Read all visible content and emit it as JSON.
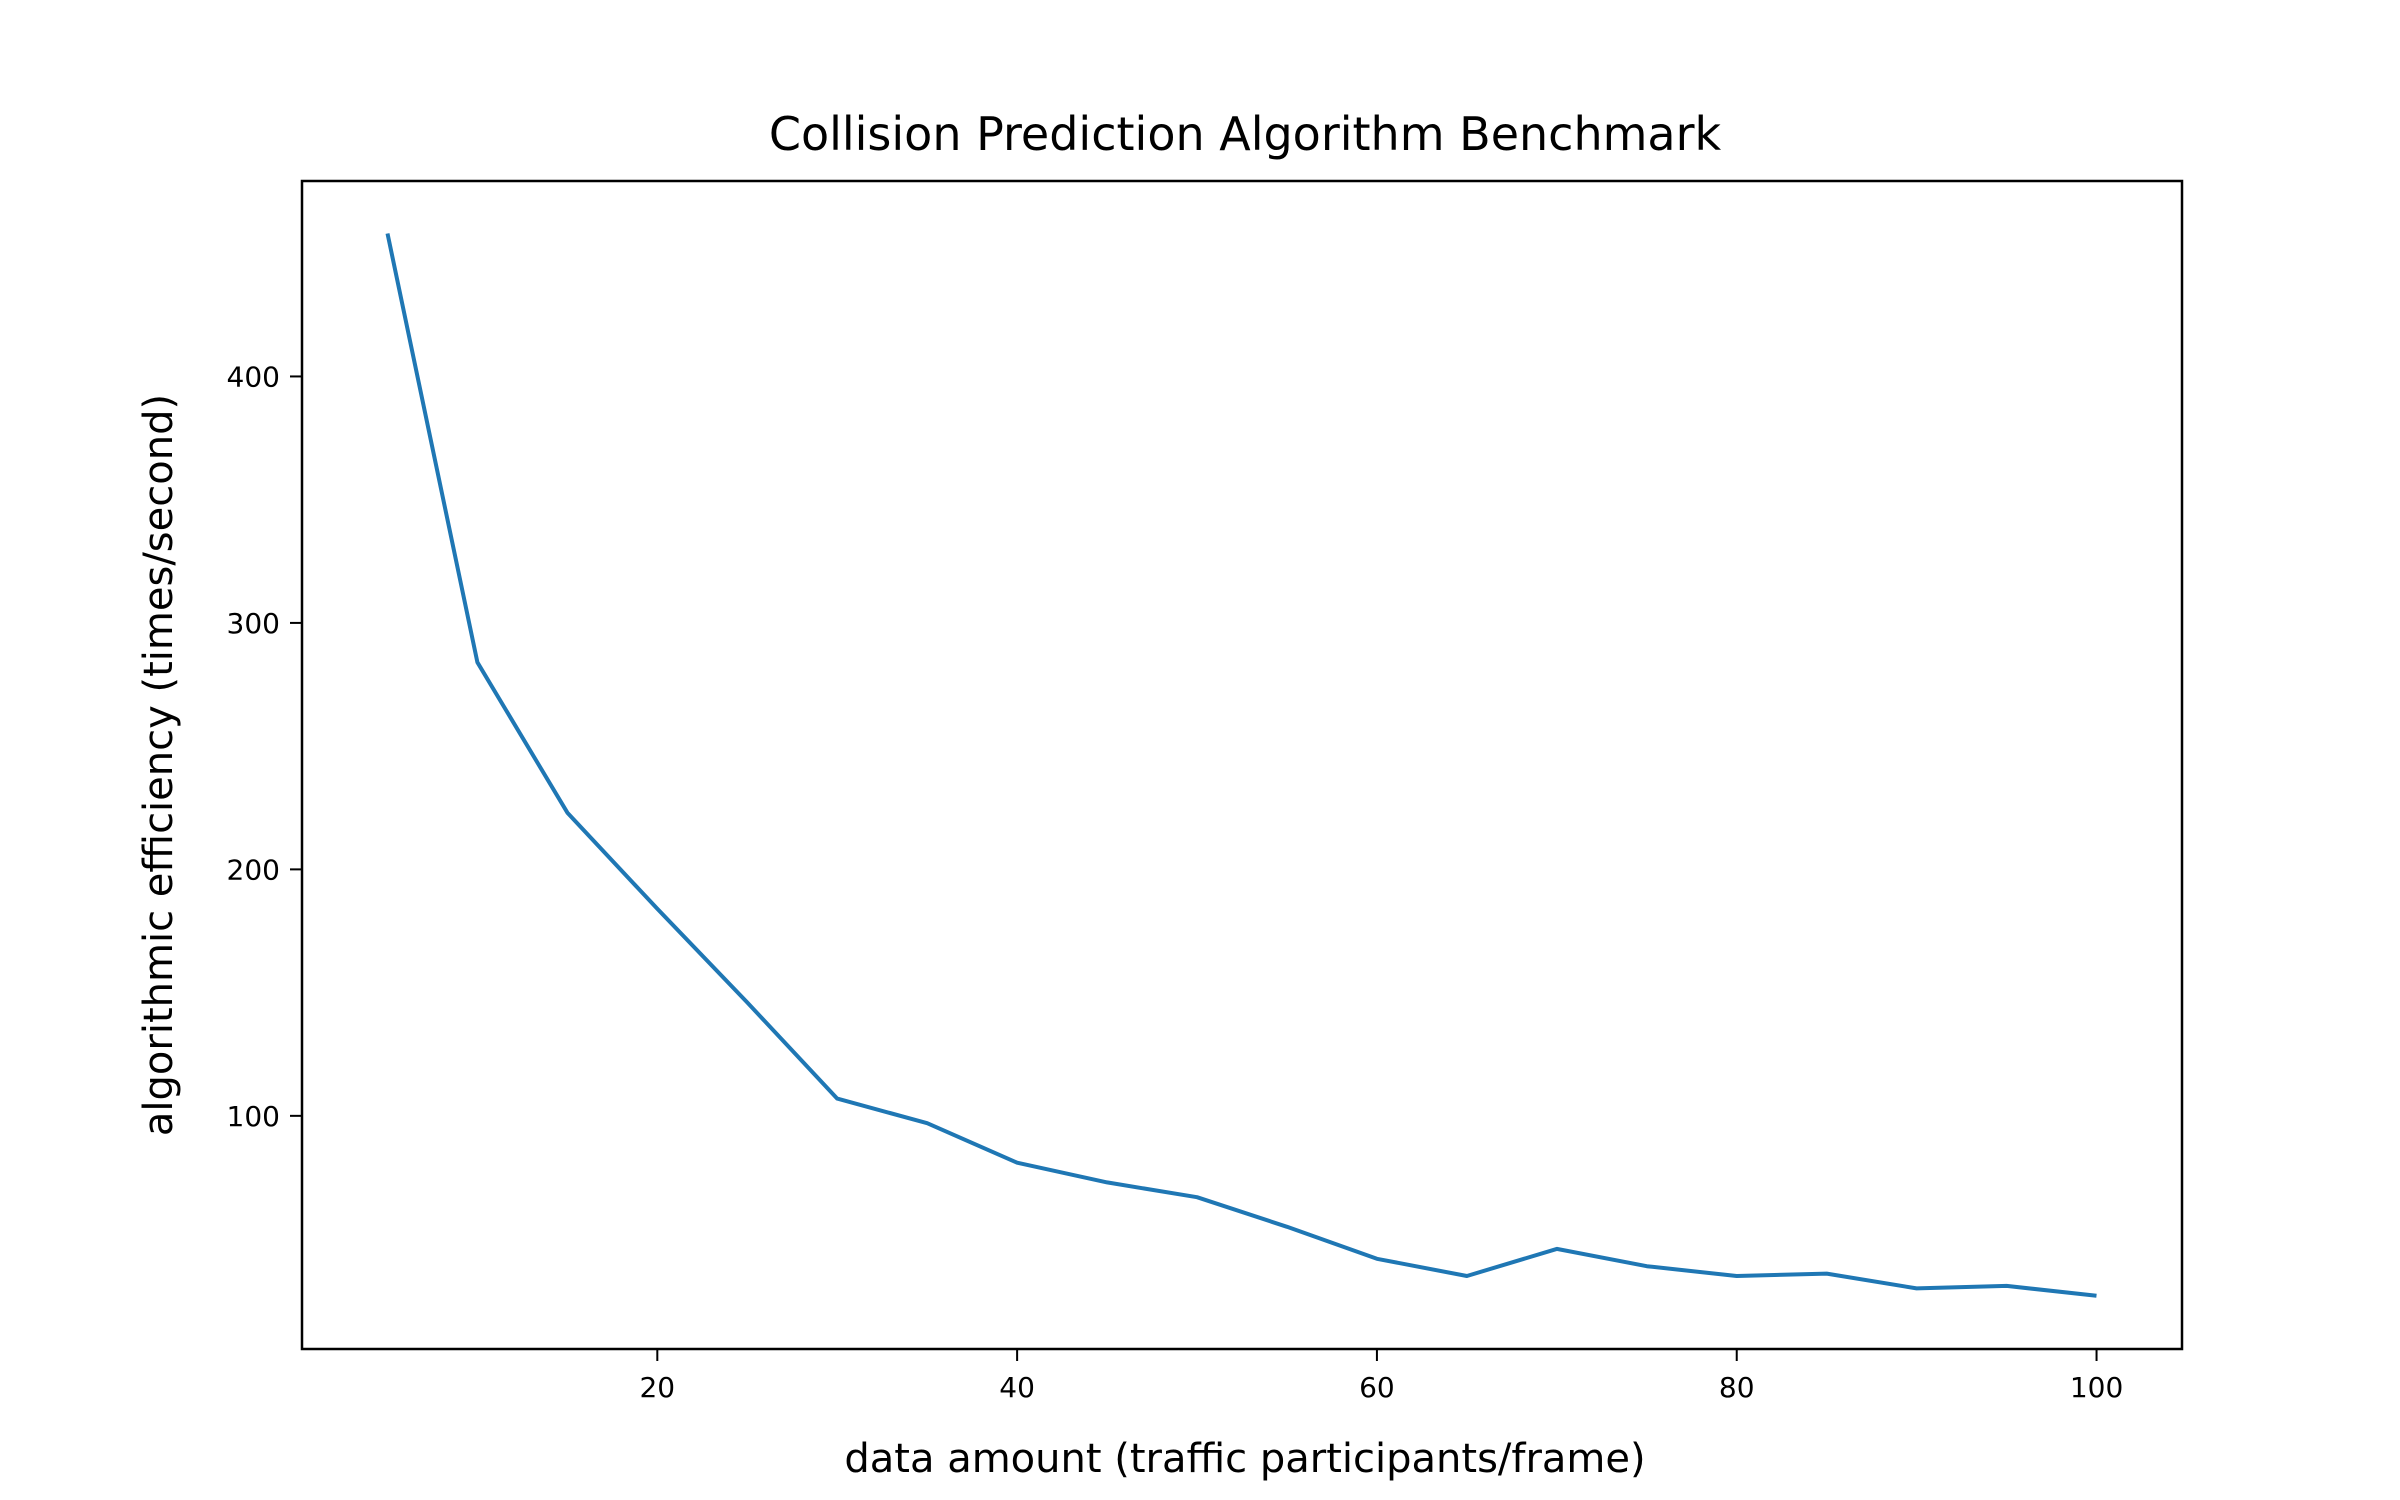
{
  "chart_data": {
    "type": "line",
    "title": "Collision Prediction Algorithm Benchmark",
    "xlabel": "data amount (traffic participants/frame)",
    "ylabel": "algorithmic efficiency (times/second)",
    "xlim": [
      0.25,
      104.75
    ],
    "ylim": [
      5.4,
      479.3
    ],
    "xticks": [
      20,
      40,
      60,
      80,
      100
    ],
    "yticks": [
      100,
      200,
      300,
      400
    ],
    "grid": false,
    "series": [
      {
        "color": "#1f77b4",
        "x": [
          5,
          10,
          15,
          20,
          25,
          30,
          35,
          40,
          45,
          50,
          55,
          60,
          65,
          70,
          75,
          80,
          85,
          90,
          95,
          100
        ],
        "y": [
          458,
          284,
          223,
          184,
          146,
          107,
          97,
          81,
          73,
          67,
          55,
          42,
          35,
          46,
          39,
          35,
          36,
          30,
          31,
          27
        ]
      }
    ]
  }
}
